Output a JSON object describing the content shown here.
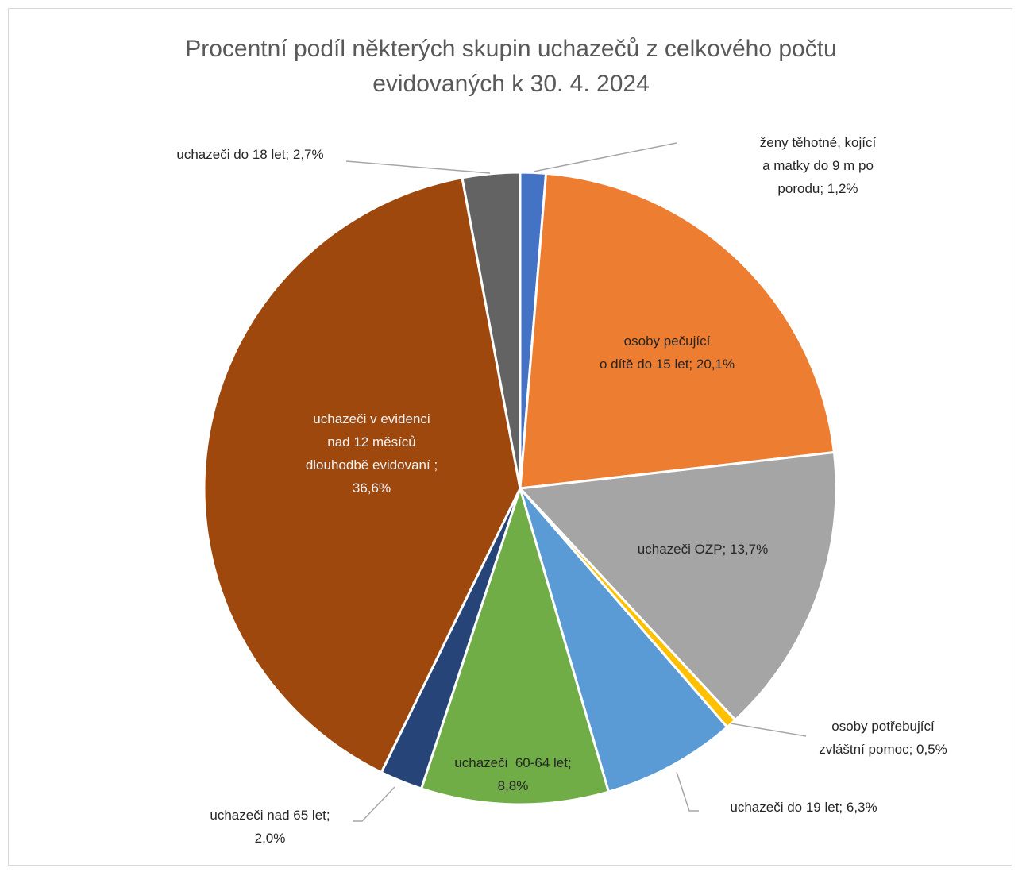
{
  "chart_data": {
    "type": "pie",
    "title_lines": [
      "Procentní podíl některých skupin uchazečů z celkového počtu",
      "evidovaných k 30. 4. 2024"
    ],
    "slices": [
      {
        "label": "ženy těhotné, kojící a matky do 9 m po porodu",
        "value": 1.2,
        "display": "1,2%",
        "color": "#4472c4",
        "label_lines": [
          "ženy těhotné, kojící",
          "a matky do 9 m po",
          "porodu; 1,2%"
        ],
        "label_color": "#262626"
      },
      {
        "label": "osoby pečující o dítě do 15 let",
        "value": 20.1,
        "display": "20,1%",
        "color": "#ed7d31",
        "label_lines": [
          "osoby pečující",
          "o dítě do 15 let; 20,1%"
        ],
        "label_color": "#262626"
      },
      {
        "label": "uchazeči OZP",
        "value": 13.7,
        "display": "13,7%",
        "color": "#a5a5a5",
        "label_lines": [
          "uchazeči OZP; 13,7%"
        ],
        "label_color": "#262626"
      },
      {
        "label": "osoby potřebující zvláštní pomoc",
        "value": 0.5,
        "display": "0,5%",
        "color": "#ffc000",
        "label_lines": [
          "osoby potřebující",
          "zvláštní pomoc; 0,5%"
        ],
        "label_color": "#262626"
      },
      {
        "label": "uchazeči do 19 let",
        "value": 6.3,
        "display": "6,3%",
        "color": "#5b9bd5",
        "label_lines": [
          "uchazeči do 19 let; 6,3%"
        ],
        "label_color": "#262626"
      },
      {
        "label": "uchazeči 60-64 let",
        "value": 8.8,
        "display": "8,8%",
        "color": "#70ad47",
        "label_lines": [
          "uchazeči  60-64 let;",
          "8,8%"
        ],
        "label_color": "#262626"
      },
      {
        "label": "uchazeči nad 65 let",
        "value": 2.0,
        "display": "2,0%",
        "color": "#264478",
        "label_lines": [
          "uchazeči nad 65 let;",
          "2,0%"
        ],
        "label_color": "#262626"
      },
      {
        "label": "uchazeči v evidenci nad 12 měsíců dlouhodbě evidovaní",
        "value": 36.6,
        "display": "36,6%",
        "color": "#9e480e",
        "label_lines": [
          "uchazeči v evidenci",
          "nad 12 měsíců",
          "dlouhodbě evidovaní ;",
          "36,6%"
        ],
        "label_color": "#f2f2f2"
      },
      {
        "label": "uchazeči do 18 let",
        "value": 2.7,
        "display": "2,7%",
        "color": "#636363",
        "label_lines": [
          "uchazeči do 18 let; 2,7%"
        ],
        "label_color": "#262626"
      }
    ],
    "legend": "none"
  }
}
